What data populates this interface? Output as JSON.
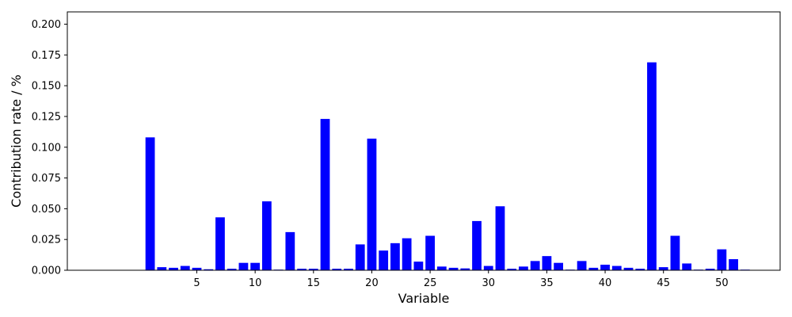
{
  "chart_data": {
    "type": "bar",
    "xlabel": "Variable",
    "ylabel": "Contribution rate / %",
    "xlim": [
      -6.1,
      55.0
    ],
    "ylim": [
      0,
      0.21
    ],
    "xticks": [
      5,
      10,
      15,
      20,
      25,
      30,
      35,
      40,
      45,
      50
    ],
    "yticks": [
      0.0,
      0.025,
      0.05,
      0.075,
      0.1,
      0.125,
      0.15,
      0.175,
      0.2
    ],
    "ytick_labels": [
      "0.000",
      "0.025",
      "0.050",
      "0.075",
      "0.100",
      "0.125",
      "0.150",
      "0.175",
      "0.200"
    ],
    "bar_width": 0.8,
    "bar_color": "#0000ff",
    "grid": false,
    "categories": [
      1,
      2,
      3,
      4,
      5,
      6,
      7,
      8,
      9,
      10,
      11,
      12,
      13,
      14,
      15,
      16,
      17,
      18,
      19,
      20,
      21,
      22,
      23,
      24,
      25,
      26,
      27,
      28,
      29,
      30,
      31,
      32,
      33,
      34,
      35,
      36,
      37,
      38,
      39,
      40,
      41,
      42,
      43,
      44,
      45,
      46,
      47,
      48,
      49,
      50,
      51,
      52
    ],
    "values": [
      0.108,
      0.0025,
      0.002,
      0.0035,
      0.002,
      0.0008,
      0.043,
      0.0012,
      0.006,
      0.006,
      0.056,
      0.0005,
      0.031,
      0.0012,
      0.0012,
      0.123,
      0.0012,
      0.0012,
      0.021,
      0.107,
      0.016,
      0.022,
      0.026,
      0.007,
      0.028,
      0.003,
      0.002,
      0.0015,
      0.04,
      0.0035,
      0.052,
      0.0012,
      0.003,
      0.0075,
      0.0115,
      0.006,
      0.0005,
      0.0075,
      0.002,
      0.0045,
      0.0035,
      0.002,
      0.0012,
      0.169,
      0.0025,
      0.028,
      0.0055,
      0.0005,
      0.0012,
      0.017,
      0.009,
      0.0005
    ]
  }
}
